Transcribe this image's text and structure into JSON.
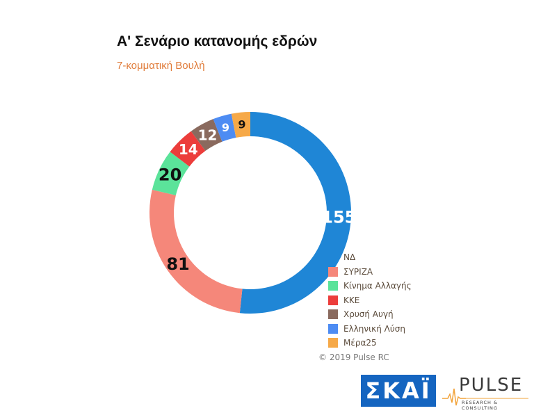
{
  "header": {
    "title": "Α' Σενάριο κατανομής εδρών",
    "subtitle": "7-κομματική Βουλή"
  },
  "chart_data": {
    "type": "pie",
    "donut": true,
    "categories": [
      "ΝΔ",
      "ΣΥΡΙΖΑ",
      "Κίνημα Αλλαγής",
      "ΚΚΕ",
      "Χρυσή Αυγή",
      "Ελληνική Λύση",
      "Μέρα25"
    ],
    "values": [
      155,
      81,
      20,
      14,
      12,
      9,
      9
    ],
    "colors": [
      "#1f86d6",
      "#f5877a",
      "#5be39a",
      "#ec3d3b",
      "#8a6a5e",
      "#4d8cf3",
      "#f6a948"
    ],
    "label_colors": [
      "#ffffff",
      "#111111",
      "#111111",
      "#ffffff",
      "#ffffff",
      "#ffffff",
      "#111111"
    ],
    "legend_position": "bottom-right"
  },
  "footer": {
    "copyright": "© 2019 Pulse RC"
  },
  "logos": {
    "skai": "ΣΚΑΪ",
    "pulse": "PULSE",
    "pulse_sub": "RESEARCH & CONSULTING"
  }
}
